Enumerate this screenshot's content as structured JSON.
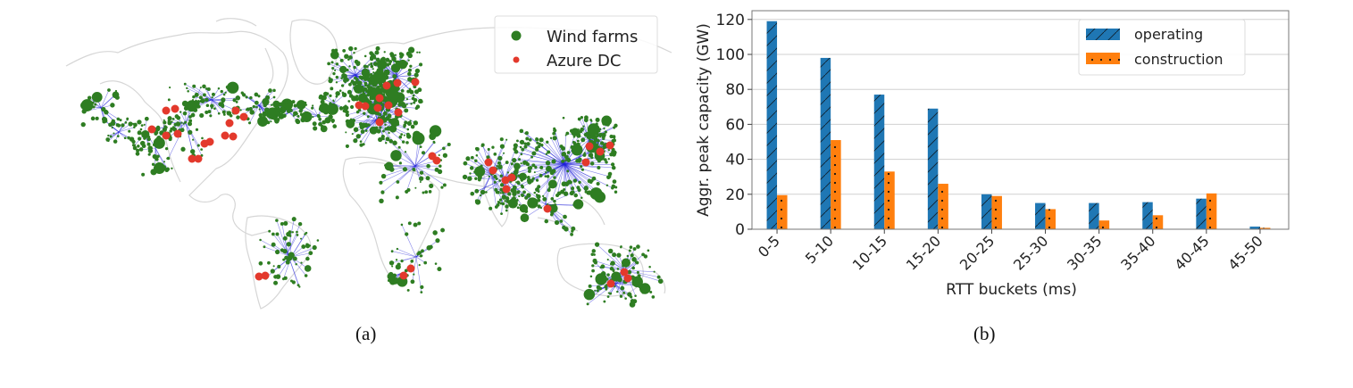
{
  "figure": {
    "captions": {
      "a": "(a)",
      "b": "(b)"
    }
  },
  "map": {
    "legend": [
      {
        "label": "Wind farms",
        "color": "#2e7d22",
        "marker": "large-dot"
      },
      {
        "label": "Azure DC",
        "color": "#e3392c",
        "marker": "small-dot"
      }
    ],
    "colors": {
      "coastline": "#d4d4d4",
      "links": "#2323d9",
      "wind_farm": "#2e7d22",
      "datacenter": "#e3392c"
    }
  },
  "chart_data": {
    "type": "bar",
    "title": "",
    "xlabel": "RTT buckets (ms)",
    "ylabel": "Aggr. peak capacity (GW)",
    "categories": [
      "0-5",
      "5-10",
      "10-15",
      "15-20",
      "20-25",
      "25-30",
      "30-35",
      "35-40",
      "40-45",
      "45-50"
    ],
    "series": [
      {
        "name": "operating",
        "color": "#1f77b4",
        "hatch": "diagonal",
        "values": [
          119,
          98,
          77,
          69,
          20,
          15,
          15,
          15.5,
          17.5,
          1.5
        ]
      },
      {
        "name": "construction",
        "color": "#ff7f0e",
        "hatch": "dots",
        "values": [
          19.5,
          51,
          33,
          26,
          19,
          11.5,
          5,
          8,
          20.5,
          0.8
        ]
      }
    ],
    "ylim": [
      0,
      125
    ],
    "yticks": [
      0,
      20,
      40,
      60,
      80,
      100,
      120
    ],
    "grid": "horizontal",
    "legend_position": "upper right",
    "xtick_rotation": 45
  }
}
